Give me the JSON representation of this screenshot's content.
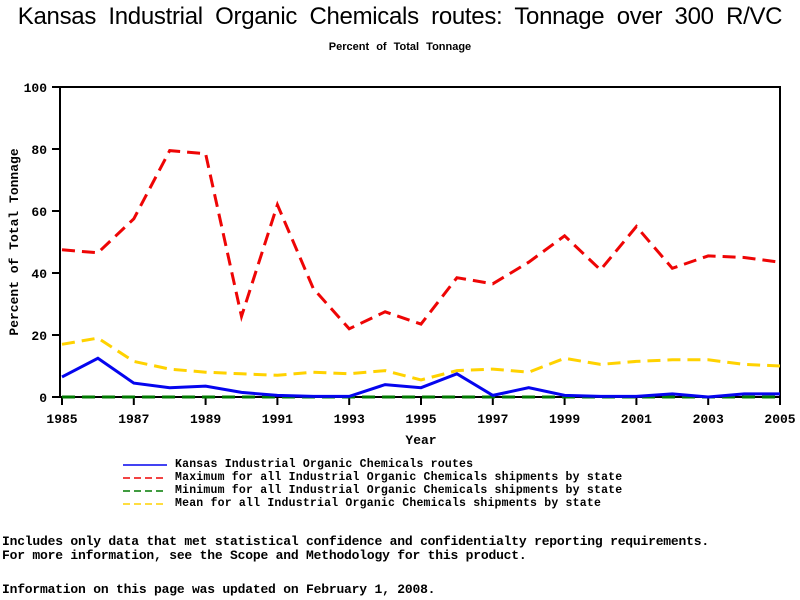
{
  "page": {
    "title": "Kansas Industrial Organic Chemicals routes: Tonnage over 300 R/VC",
    "subtitle": "Percent of Total Tonnage"
  },
  "chart_data": {
    "type": "line",
    "x": [
      1985,
      1986,
      1987,
      1988,
      1989,
      1990,
      1991,
      1992,
      1993,
      1994,
      1995,
      1996,
      1997,
      1998,
      1999,
      2000,
      2001,
      2002,
      2003,
      2004,
      2005
    ],
    "series": [
      {
        "name": "Kansas Industrial Organic Chemicals routes",
        "color": "#0505ee",
        "style": "solid",
        "values": [
          6.5,
          12.5,
          4.5,
          3,
          3.5,
          1.5,
          0.5,
          0.2,
          0.2,
          4,
          3,
          7.5,
          0.5,
          3,
          0.5,
          0.2,
          0.2,
          1,
          0,
          1,
          1
        ]
      },
      {
        "name": "Maximum for all Industrial Organic Chemicals shipments by state",
        "color": "#ee0505",
        "style": "dashed",
        "values": [
          47.5,
          46.5,
          57.5,
          79.5,
          78.5,
          26,
          62,
          35,
          22,
          27.5,
          23.5,
          38.5,
          36.5,
          43.5,
          52,
          41,
          55,
          41.5,
          45.5,
          45,
          43.5
        ]
      },
      {
        "name": "Minimum for all Industrial Organic Chemicals shipments by state",
        "color": "#007a00",
        "style": "dashed",
        "values": [
          0,
          0,
          0,
          0,
          0,
          0,
          0,
          0,
          0,
          0,
          0,
          0,
          0,
          0,
          0,
          0,
          0,
          0,
          0,
          0,
          0
        ]
      },
      {
        "name": "Mean for all Industrial Organic Chemicals shipments by state",
        "color": "#ffd200",
        "style": "dashed",
        "values": [
          17,
          19,
          11.5,
          9,
          8,
          7.5,
          7,
          8,
          7.5,
          8.5,
          5.5,
          8.5,
          9,
          8,
          12.5,
          10.5,
          11.5,
          12,
          12,
          10.5,
          10
        ]
      }
    ],
    "xlabel": "Year",
    "ylabel": "Percent of Total Tonnage",
    "xlim": [
      1985,
      2005
    ],
    "ylim": [
      0,
      100
    ],
    "xticks": [
      1985,
      1987,
      1989,
      1991,
      1993,
      1995,
      1997,
      1999,
      2001,
      2003,
      2005
    ],
    "yticks": [
      0,
      20,
      40,
      60,
      80,
      100
    ],
    "grid": false,
    "legend_position": "bottom-left",
    "axis_color": "#000000"
  },
  "footnotes": {
    "line1": "Includes only data that met statistical confidence and confidentialty reporting requirements.",
    "line2": "For more information, see the Scope and Methodology for this product.",
    "updated": "Information on this page was updated on February 1, 2008."
  }
}
